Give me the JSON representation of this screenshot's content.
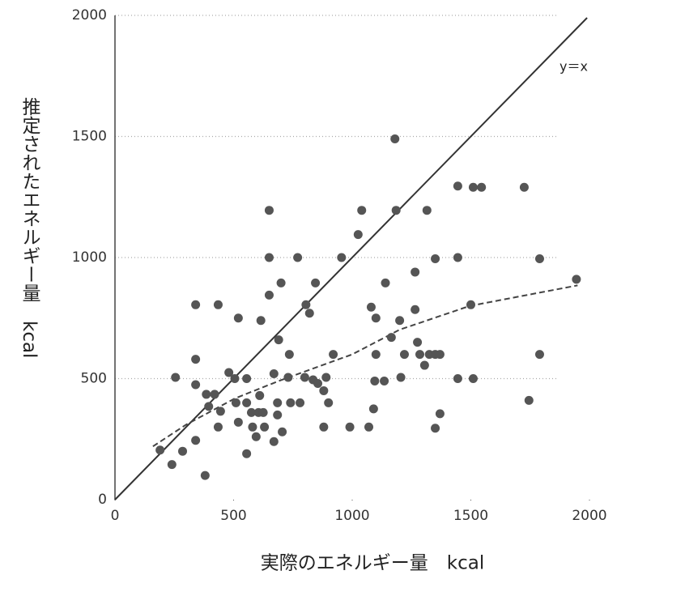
{
  "chart_data": {
    "type": "scatter",
    "x_label": "実際のエネルギー量　kcal",
    "y_label": "推定されたエネルギー量　kcal",
    "xlim": [
      0,
      2000
    ],
    "ylim": [
      0,
      2000
    ],
    "xticks": [
      0,
      500,
      1000,
      1500,
      2000
    ],
    "yticks": [
      0,
      500,
      1000,
      1500,
      2000
    ],
    "grid": true,
    "series": [
      {
        "color": "#555555",
        "x": [
          190,
          240,
          285,
          255,
          340,
          340,
          340,
          340,
          380,
          385,
          420,
          395,
          435,
          435,
          445,
          480,
          505,
          510,
          520,
          520,
          555,
          555,
          575,
          580,
          595,
          605,
          610,
          615,
          625,
          630,
          555,
          650,
          650,
          650,
          670,
          670,
          685,
          685,
          690,
          700,
          705,
          730,
          735,
          740,
          770,
          780,
          800,
          805,
          820,
          835,
          845,
          855,
          880,
          890,
          880,
          900,
          920,
          955,
          990,
          1025,
          1040,
          1070,
          1080,
          1090,
          1100,
          1100,
          1095,
          1135,
          1140,
          1165,
          1180,
          1185,
          1200,
          1205,
          1220,
          1265,
          1265,
          1275,
          1285,
          1315,
          1305,
          1325,
          1350,
          1350,
          1350,
          1370,
          1370,
          1445,
          1445,
          1445,
          1500,
          1510,
          1510,
          1545,
          1725,
          1745,
          1790,
          1790,
          1945
        ],
        "values": [
          205,
          145,
          200,
          505,
          805,
          580,
          475,
          245,
          100,
          435,
          435,
          385,
          805,
          300,
          365,
          525,
          500,
          400,
          750,
          320,
          500,
          400,
          360,
          300,
          260,
          360,
          430,
          740,
          360,
          300,
          190,
          1195,
          1000,
          845,
          520,
          240,
          400,
          350,
          660,
          895,
          280,
          505,
          600,
          400,
          1000,
          400,
          505,
          805,
          770,
          495,
          895,
          480,
          450,
          505,
          300,
          400,
          600,
          1000,
          300,
          1095,
          1195,
          300,
          795,
          375,
          750,
          600,
          490,
          490,
          895,
          670,
          1490,
          1195,
          740,
          505,
          600,
          940,
          785,
          650,
          600,
          1195,
          555,
          600,
          995,
          295,
          600,
          355,
          600,
          1295,
          1000,
          500,
          805,
          1290,
          500,
          1290,
          1290,
          410,
          995,
          600,
          910
        ]
      }
    ],
    "trend_line": {
      "x": [
        160,
        300,
        505,
        695,
        1000,
        1200,
        1495,
        1950
      ],
      "values": [
        220,
        310,
        418,
        492,
        600,
        702,
        800,
        885
      ],
      "color": "#444444"
    },
    "identity_line": {
      "label": "y＝x",
      "x": [
        0,
        1990
      ],
      "values": [
        0,
        1990
      ],
      "color": "#333333"
    }
  }
}
